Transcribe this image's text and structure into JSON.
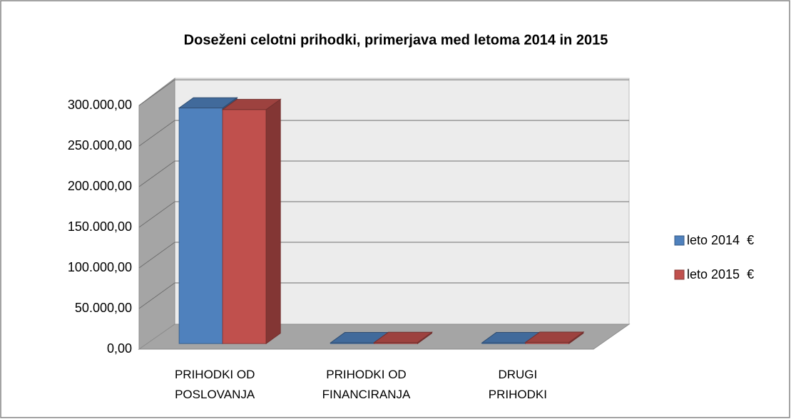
{
  "chart_data": {
    "type": "bar3d",
    "title": "Doseženi celotni prihodki, primerjava med letoma 2014 in 2015",
    "categories": [
      "PRIHODKI OD POSLOVANJA",
      "PRIHODKI OD FINANCIRANJA",
      "DRUGI PRIHODKI"
    ],
    "series": [
      {
        "name": "leto 2014  €",
        "color": "#4f81bd",
        "values": [
          290000,
          1000,
          1000
        ]
      },
      {
        "name": "leto 2015  €",
        "color": "#c0504d",
        "values": [
          288000,
          1200,
          1500
        ]
      }
    ],
    "ylim": [
      0,
      300000
    ],
    "yticks": [
      {
        "value": 0,
        "label": "0,00"
      },
      {
        "value": 50000,
        "label": "50.000,00"
      },
      {
        "value": 100000,
        "label": "100.000,00"
      },
      {
        "value": 150000,
        "label": "150.000,00"
      },
      {
        "value": 200000,
        "label": "200.000,00"
      },
      {
        "value": 250000,
        "label": "250.000,00"
      },
      {
        "value": 300000,
        "label": "300.000,00"
      }
    ],
    "grid": true,
    "legend": "right"
  }
}
